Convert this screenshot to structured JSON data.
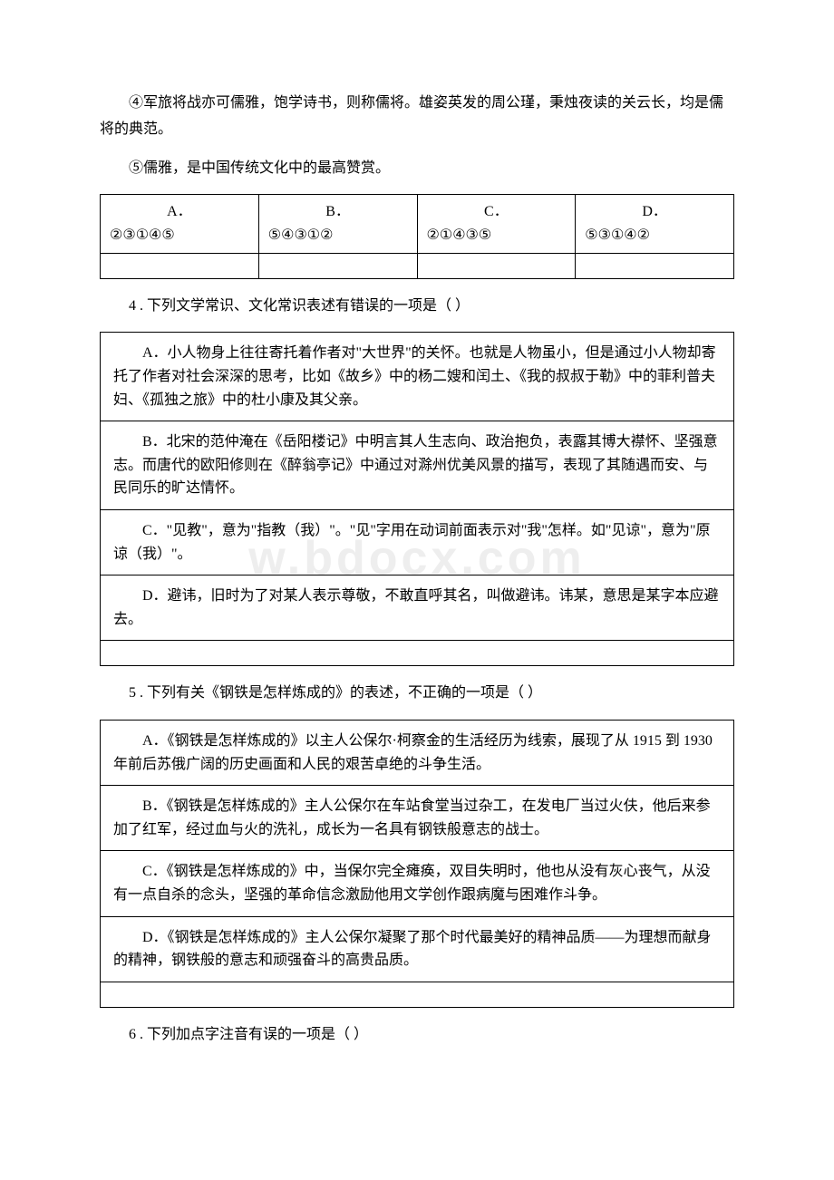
{
  "intro": {
    "p4": "④军旅将战亦可儒雅，饱学诗书，则称儒将。雄姿英发的周公瑾，秉烛夜读的关云长，均是儒将的典范。",
    "p5": "⑤儒雅，是中国传统文化中的最高赞赏。"
  },
  "q3_options": {
    "A_label": "A．",
    "A_val": "②③①④⑤",
    "B_label": "B．",
    "B_val": "⑤④③①②",
    "C_label": "C．",
    "C_val": "②①④③⑤",
    "D_label": "D．",
    "D_val": "⑤③①④②"
  },
  "q4": {
    "stem": "4 . 下列文学常识、文化常识表述有错误的一项是（ ）",
    "A": "A．小人物身上往往寄托着作者对\"大世界\"的关怀。也就是人物虽小，但是通过小人物却寄托了作者对社会深深的思考，比如《故乡》中的杨二嫂和闰土、《我的叔叔于勒》中的菲利普夫妇、《孤独之旅》中的杜小康及其父亲。",
    "B": "B．北宋的范仲淹在《岳阳楼记》中明言其人生志向、政治抱负，表露其博大襟怀、坚强意志。而唐代的欧阳修则在《醉翁亭记》中通过对滁州优美风景的描写，表现了其随遇而安、与民同乐的旷达情怀。",
    "C": "C．\"见教\"，意为\"指教（我）\"。\"见\"字用在动词前面表示对\"我\"怎样。如\"见谅\"，意为\"原谅（我）\"。",
    "D": "D．避讳，旧时为了对某人表示尊敬，不敢直呼其名，叫做避讳。讳某，意思是某字本应避去。"
  },
  "q5": {
    "stem": "5 . 下列有关《钢铁是怎样炼成的》的表述，不正确的一项是（ ）",
    "A": "A．《钢铁是怎样炼成的》以主人公保尔·柯察金的生活经历为线索，展现了从 1915 到 1930 年前后苏俄广阔的历史画面和人民的艰苦卓绝的斗争生活。",
    "B": "B．《钢铁是怎样炼成的》主人公保尔在车站食堂当过杂工，在发电厂当过火伕，他后来参加了红军，经过血与火的洗礼，成长为一名具有钢铁般意志的战士。",
    "C": "C．《钢铁是怎样炼成的》中，当保尔完全瘫痪，双目失明时，他也从没有灰心丧气，从没有一点自杀的念头，坚强的革命信念激励他用文学创作跟病魔与困难作斗争。",
    "D": "D．《钢铁是怎样炼成的》主人公保尔凝聚了那个时代最美好的精神品质——为理想而献身的精神，钢铁般的意志和顽强奋斗的高贵品质。"
  },
  "q6": {
    "stem": "6 . 下列加点字注音有误的一项是（ ）"
  },
  "watermark": "w.bdocx.com"
}
